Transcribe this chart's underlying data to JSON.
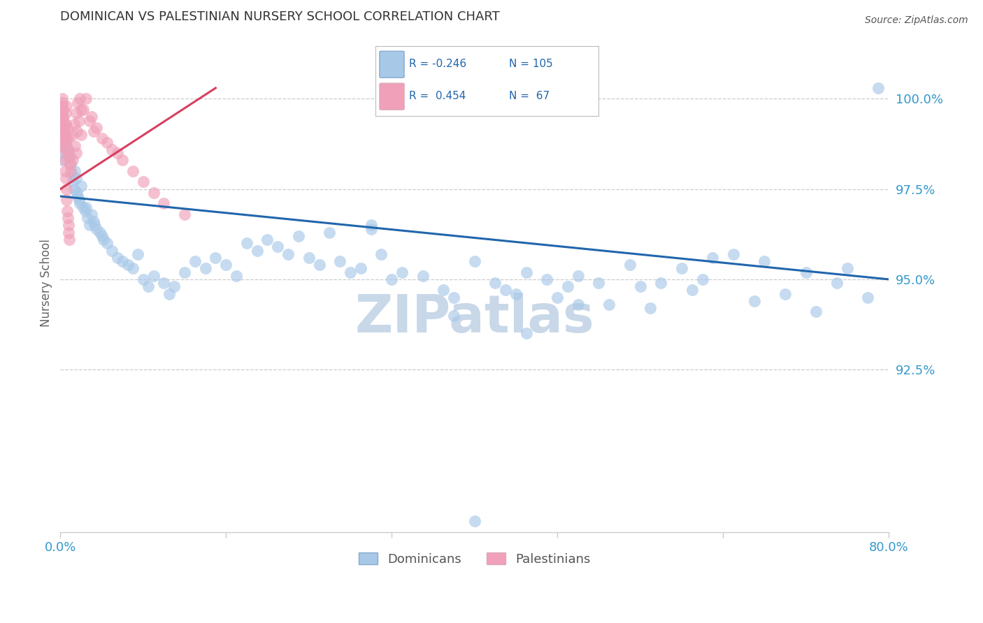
{
  "title": "DOMINICAN VS PALESTINIAN NURSERY SCHOOL CORRELATION CHART",
  "source": "Source: ZipAtlas.com",
  "ylabel": "Nursery School",
  "xlim": [
    0.0,
    80.0
  ],
  "ylim": [
    88.0,
    101.8
  ],
  "ytick_values": [
    92.5,
    95.0,
    97.5,
    100.0
  ],
  "ytick_labels": [
    "92.5%",
    "95.0%",
    "97.5%",
    "100.0%"
  ],
  "xtick_values": [
    0.0,
    16.0,
    32.0,
    48.0,
    64.0,
    80.0
  ],
  "xtick_labels": [
    "0.0%",
    "",
    "",
    "",
    "",
    "80.0%"
  ],
  "dominican_R": -0.246,
  "dominican_N": 105,
  "palestinian_R": 0.454,
  "palestinian_N": 67,
  "blue_fill": "#a8c8e8",
  "pink_fill": "#f0a0b8",
  "blue_line": "#2166ac",
  "pink_line": "#d64060",
  "grid_color": "#cccccc",
  "title_color": "#333333",
  "axis_label_color": "#666666",
  "tick_color": "#3399cc",
  "watermark": "ZIPatlas",
  "watermark_color": "#c8d8e8",
  "blue_trend_x0": 0.0,
  "blue_trend_x1": 80.0,
  "blue_trend_y0": 97.3,
  "blue_trend_y1": 95.0,
  "pink_trend_x0": 0.0,
  "pink_trend_x1": 15.0,
  "pink_trend_y0": 97.5,
  "pink_trend_y1": 100.3,
  "dom_x": [
    0.2,
    0.3,
    0.4,
    0.5,
    0.6,
    0.7,
    0.8,
    0.9,
    1.0,
    1.1,
    1.2,
    1.3,
    1.4,
    1.5,
    1.6,
    1.7,
    1.8,
    1.9,
    2.0,
    2.2,
    2.4,
    2.6,
    2.8,
    3.0,
    3.2,
    3.5,
    3.8,
    4.0,
    4.5,
    5.0,
    5.5,
    6.0,
    6.5,
    7.0,
    7.5,
    8.0,
    9.0,
    10.0,
    11.0,
    12.0,
    13.0,
    14.0,
    15.0,
    16.0,
    17.0,
    18.0,
    19.0,
    20.0,
    21.0,
    22.0,
    23.0,
    24.0,
    25.0,
    26.0,
    27.0,
    28.0,
    29.0,
    30.0,
    31.0,
    32.0,
    33.0,
    35.0,
    37.0,
    38.0,
    40.0,
    42.0,
    43.0,
    44.0,
    45.0,
    47.0,
    48.0,
    49.0,
    50.0,
    52.0,
    53.0,
    55.0,
    56.0,
    57.0,
    58.0,
    60.0,
    61.0,
    62.0,
    63.0,
    65.0,
    67.0,
    68.0,
    70.0,
    72.0,
    73.0,
    75.0,
    76.0,
    78.0,
    79.0,
    40.0,
    0.15,
    0.25,
    3.3,
    8.5,
    2.5,
    4.2,
    10.5,
    30.0,
    50.0,
    45.0,
    38.0
  ],
  "dom_y": [
    99.5,
    99.2,
    99.0,
    98.8,
    98.7,
    98.6,
    98.5,
    98.4,
    98.2,
    97.9,
    97.7,
    97.5,
    98.0,
    97.8,
    97.4,
    97.3,
    97.2,
    97.1,
    97.6,
    97.0,
    96.9,
    96.7,
    96.5,
    96.8,
    96.6,
    96.4,
    96.3,
    96.2,
    96.0,
    95.8,
    95.6,
    95.5,
    95.4,
    95.3,
    95.7,
    95.0,
    95.1,
    94.9,
    94.8,
    95.2,
    95.5,
    95.3,
    95.6,
    95.4,
    95.1,
    96.0,
    95.8,
    96.1,
    95.9,
    95.7,
    96.2,
    95.6,
    95.4,
    96.3,
    95.5,
    95.2,
    95.3,
    96.4,
    95.7,
    95.0,
    95.2,
    95.1,
    94.7,
    94.5,
    95.5,
    94.9,
    94.7,
    94.6,
    95.2,
    95.0,
    94.5,
    94.8,
    95.1,
    94.9,
    94.3,
    95.4,
    94.8,
    94.2,
    94.9,
    95.3,
    94.7,
    95.0,
    95.6,
    95.7,
    94.4,
    95.5,
    94.6,
    95.2,
    94.1,
    94.9,
    95.3,
    94.5,
    100.3,
    88.3,
    98.3,
    98.5,
    96.5,
    94.8,
    97.0,
    96.1,
    94.6,
    96.5,
    94.3,
    93.5,
    94.0
  ],
  "pal_x": [
    0.1,
    0.15,
    0.2,
    0.25,
    0.3,
    0.35,
    0.4,
    0.45,
    0.5,
    0.55,
    0.6,
    0.65,
    0.7,
    0.75,
    0.8,
    0.9,
    1.0,
    1.2,
    1.4,
    1.6,
    1.8,
    2.0,
    2.5,
    3.0,
    3.5,
    4.0,
    5.0,
    6.0,
    7.0,
    8.0,
    9.0,
    10.0,
    12.0,
    0.12,
    0.18,
    0.22,
    0.28,
    0.32,
    0.38,
    0.42,
    0.48,
    0.52,
    0.58,
    0.62,
    0.68,
    0.72,
    0.78,
    0.82,
    0.88,
    1.1,
    1.3,
    1.5,
    1.7,
    1.9,
    2.2,
    2.8,
    3.2,
    4.5,
    5.5,
    0.08,
    0.05,
    0.06,
    0.08,
    1.5,
    2.0,
    0.5,
    0.3
  ],
  "pal_y": [
    99.6,
    99.8,
    100.0,
    99.7,
    99.4,
    99.1,
    98.8,
    99.0,
    99.3,
    99.6,
    99.8,
    99.2,
    98.9,
    98.6,
    98.4,
    98.2,
    98.0,
    98.3,
    98.7,
    99.1,
    99.4,
    99.7,
    100.0,
    99.5,
    99.2,
    98.9,
    98.6,
    98.3,
    98.0,
    97.7,
    97.4,
    97.1,
    96.8,
    99.7,
    99.9,
    99.5,
    99.2,
    98.9,
    98.6,
    98.3,
    98.0,
    97.8,
    97.5,
    97.2,
    96.9,
    96.7,
    96.5,
    96.3,
    96.1,
    99.0,
    99.3,
    99.6,
    99.9,
    100.0,
    99.7,
    99.4,
    99.1,
    98.8,
    98.5,
    99.4,
    99.6,
    99.2,
    98.7,
    98.5,
    99.0,
    98.9,
    99.2
  ]
}
